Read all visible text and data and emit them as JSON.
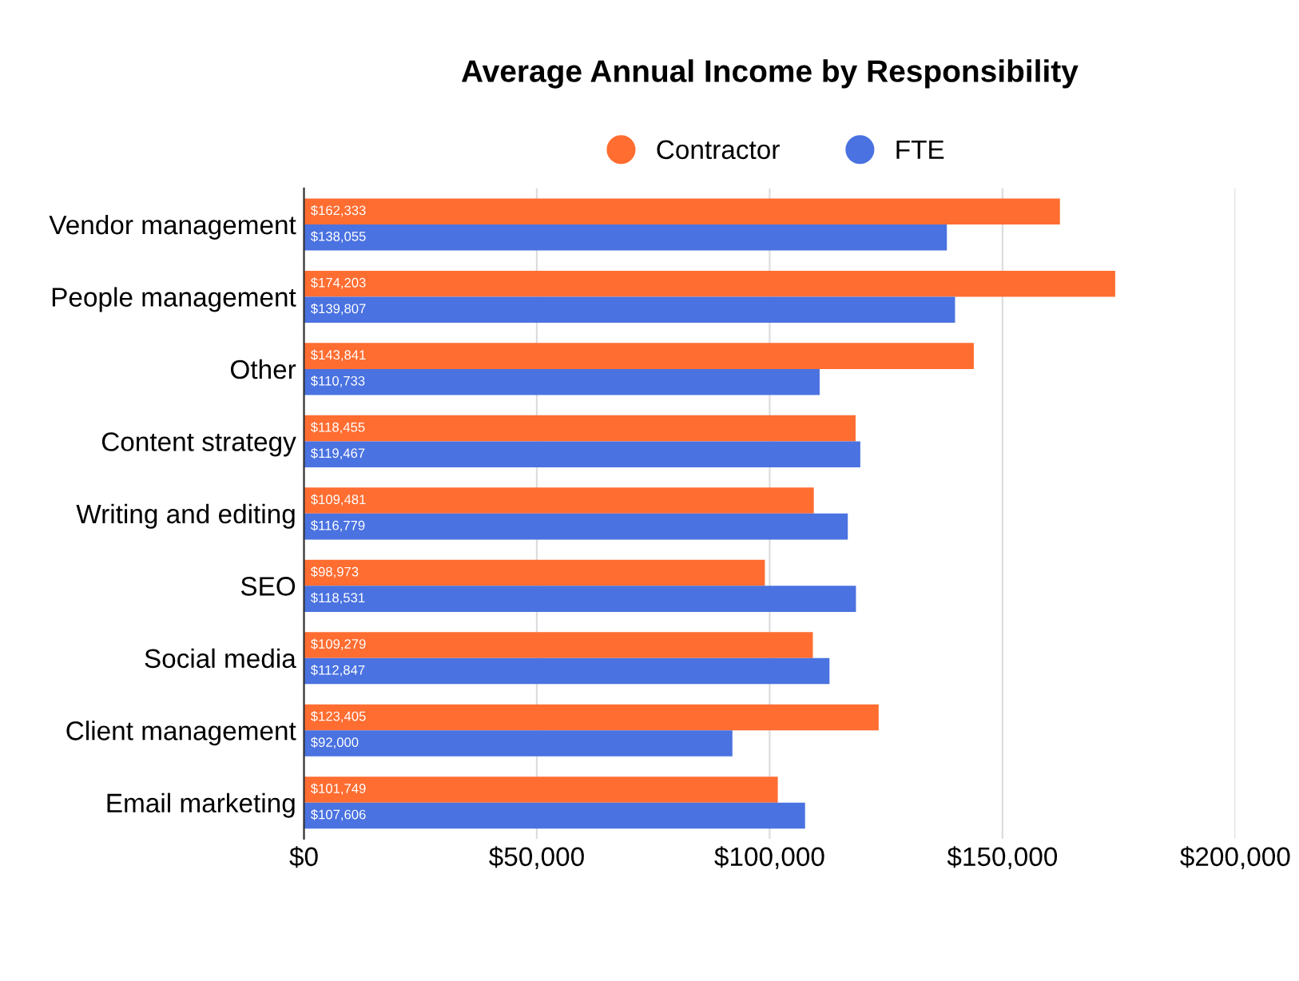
{
  "chart_data": {
    "type": "bar",
    "orientation": "horizontal",
    "title": "Average Annual Income by Responsibility",
    "categories": [
      "Vendor management",
      "People management",
      "Other",
      "Content strategy",
      "Writing and editing",
      "SEO",
      "Social media",
      "Client management",
      "Email marketing"
    ],
    "series": [
      {
        "name": "Contractor",
        "color": "#ff6d31",
        "values": [
          162333,
          174203,
          143841,
          118455,
          109481,
          98973,
          109279,
          123405,
          101749
        ],
        "value_labels": [
          "$162,333",
          "$174,203",
          "$143,841",
          "$118,455",
          "$109,481",
          "$98,973",
          "$109,279",
          "$123,405",
          "$101,749"
        ]
      },
      {
        "name": "FTE",
        "color": "#4a72e0",
        "values": [
          138055,
          139807,
          110733,
          119467,
          116779,
          118531,
          112847,
          92000,
          107606
        ],
        "value_labels": [
          "$138,055",
          "$139,807",
          "$110,733",
          "$119,467",
          "$116,779",
          "$118,531",
          "$112,847",
          "$92,000",
          "$107,606"
        ]
      }
    ],
    "xlim": [
      0,
      200000
    ],
    "xticks": [
      {
        "value": 0,
        "label": "$0"
      },
      {
        "value": 50000,
        "label": "$50,000"
      },
      {
        "value": 100000,
        "label": "$100,000"
      },
      {
        "value": 150000,
        "label": "$150,000"
      },
      {
        "value": 200000,
        "label": "$200,000"
      }
    ],
    "grid": "x",
    "legend": "top"
  }
}
